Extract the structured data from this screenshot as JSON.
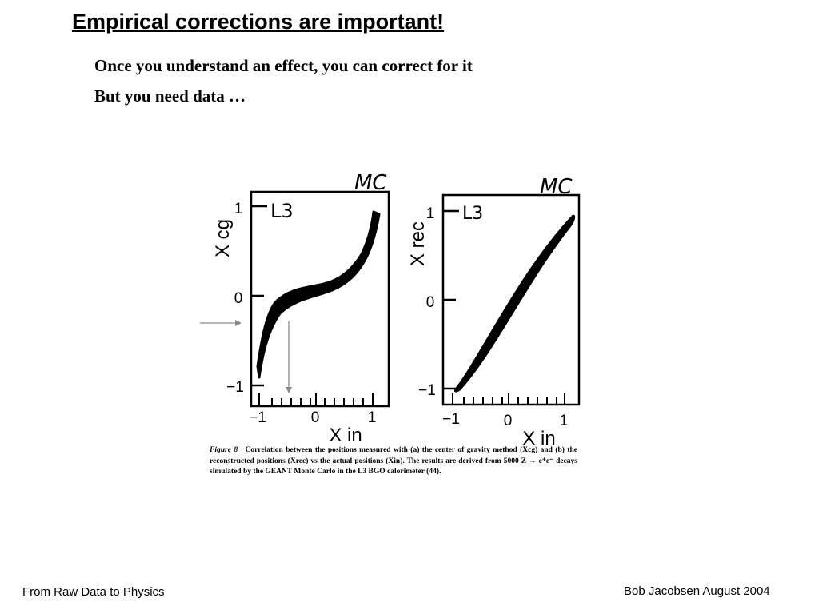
{
  "slide": {
    "title": "Empirical corrections are important!",
    "bullets": [
      "Once you understand an effect, you can correct for it",
      "But you need data …"
    ]
  },
  "figure": {
    "left_plot": {
      "tag": "MC",
      "experiment": "L3",
      "ylabel": "X cg",
      "xlabel": "X in",
      "yticks": [
        "1",
        "0",
        "−1"
      ],
      "xticks": [
        "−1",
        "0",
        "1"
      ]
    },
    "right_plot": {
      "tag": "MC",
      "experiment": "L3",
      "ylabel": "X rec",
      "xlabel": "X in",
      "yticks": [
        "1",
        "0",
        "−1"
      ],
      "xticks": [
        "−1",
        "0",
        "1"
      ]
    },
    "caption_label": "Figure 8",
    "caption_text": "Correlation between the positions measured with (a) the center of gravity method (Xcg) and (b) the reconstructed positions (Xrec) vs the actual positions (Xin). The results are derived from 5000 Z → e⁺e⁻ decays simulated by the GEANT Monte Carlo in the L3 BGO calorimeter (44).",
    "arrow_color": "#8a8a8a"
  },
  "footer": {
    "left": "From Raw Data to Physics",
    "right": "Bob Jacobsen August 2004"
  }
}
